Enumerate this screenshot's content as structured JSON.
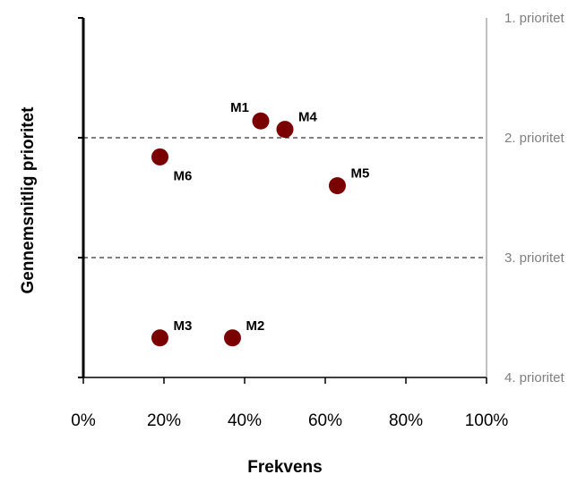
{
  "chart_data": {
    "type": "scatter",
    "xlabel": "Frekvens",
    "ylabel": "Gennemsnitlig prioritet",
    "xlim": [
      0,
      100
    ],
    "ylim": [
      1,
      4
    ],
    "y_inverted": true,
    "x_ticks": [
      "0%",
      "20%",
      "40%",
      "60%",
      "80%",
      "100%"
    ],
    "x_tick_values": [
      0,
      20,
      40,
      60,
      80,
      100
    ],
    "y_tick_values": [
      1,
      2,
      3,
      4
    ],
    "right_axis_labels": [
      "1. prioritet",
      "2. prioritet",
      "3. prioritet",
      "4. prioritet"
    ],
    "gridlines": [
      2,
      3
    ],
    "grid_style": "dashed",
    "point_color": "#7a0000",
    "points": [
      {
        "label": "M1",
        "x": 44,
        "y": 1.86,
        "label_pos": "upper-left"
      },
      {
        "label": "M4",
        "x": 50,
        "y": 1.93,
        "label_pos": "upper-right"
      },
      {
        "label": "M6",
        "x": 19,
        "y": 2.16,
        "label_pos": "lower-right"
      },
      {
        "label": "M5",
        "x": 63,
        "y": 2.4,
        "label_pos": "upper-right"
      },
      {
        "label": "M3",
        "x": 19,
        "y": 3.67,
        "label_pos": "upper-right"
      },
      {
        "label": "M2",
        "x": 37,
        "y": 3.67,
        "label_pos": "upper-right"
      }
    ]
  }
}
